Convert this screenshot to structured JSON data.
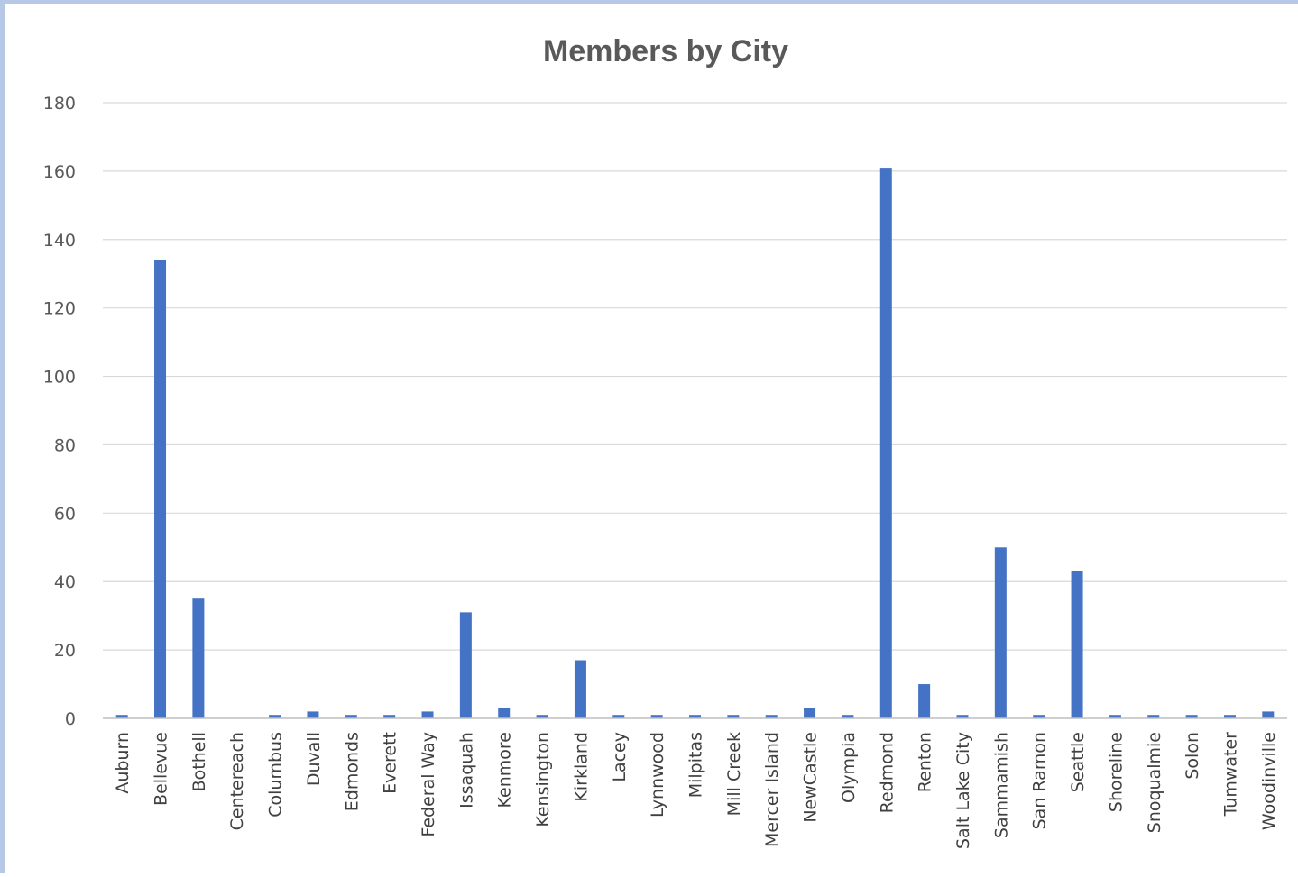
{
  "chart_data": {
    "type": "bar",
    "title": "Members by City",
    "xlabel": "",
    "ylabel": "",
    "ylim": [
      0,
      180
    ],
    "yticks": [
      0,
      20,
      40,
      60,
      80,
      100,
      120,
      140,
      160,
      180
    ],
    "grid": true,
    "legend": "none",
    "bar_color": "#4472c4",
    "categories": [
      "Auburn",
      "Bellevue",
      "Bothell",
      "Centereach",
      "Columbus",
      "Duvall",
      "Edmonds",
      "Everett",
      "Federal Way",
      "Issaquah",
      "Kenmore",
      "Kensington",
      "Kirkland",
      "Lacey",
      "Lynnwood",
      "Milpitas",
      "Mill Creek",
      "Mercer Island",
      "NewCastle",
      "Olympia",
      "Redmond",
      "Renton",
      "Salt Lake City",
      "Sammamish",
      "San Ramon",
      "Seattle",
      "Shoreline",
      "Snoqualmie",
      "Solon",
      "Tumwater",
      "Woodinville"
    ],
    "values": [
      1,
      134,
      35,
      0,
      1,
      2,
      1,
      1,
      2,
      31,
      3,
      1,
      17,
      1,
      1,
      1,
      1,
      1,
      3,
      1,
      161,
      10,
      1,
      50,
      1,
      43,
      1,
      1,
      1,
      1,
      2
    ]
  }
}
